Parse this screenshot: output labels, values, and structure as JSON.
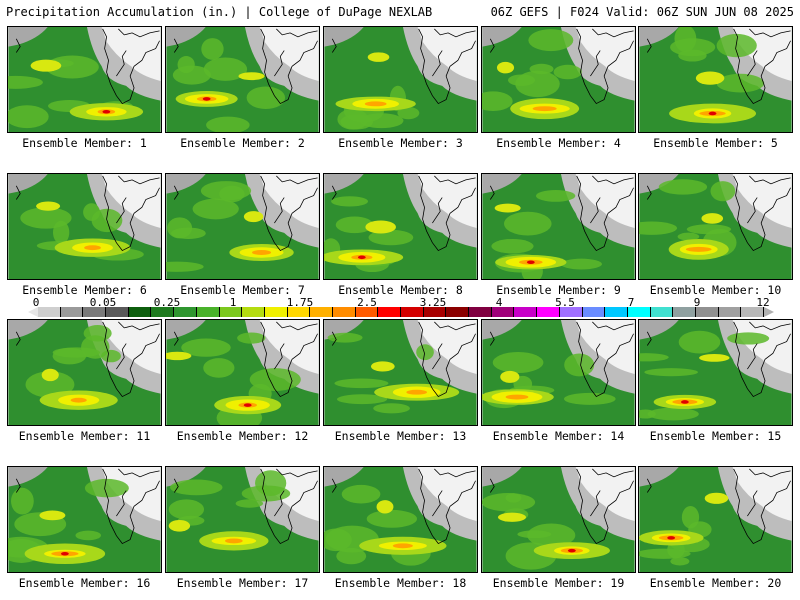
{
  "header": {
    "left_title": "Precipitation Accumulation (in.) | College of DuPage NEXLAB",
    "right_title": "06Z GEFS | F024 Valid: 06Z SUN JUN 08 2025"
  },
  "panels": [
    {
      "label": "Ensemble Member: 1"
    },
    {
      "label": "Ensemble Member: 2"
    },
    {
      "label": "Ensemble Member: 3"
    },
    {
      "label": "Ensemble Member: 4"
    },
    {
      "label": "Ensemble Member: 5"
    },
    {
      "label": "Ensemble Member: 6"
    },
    {
      "label": "Ensemble Member: 7"
    },
    {
      "label": "Ensemble Member: 8"
    },
    {
      "label": "Ensemble Member: 9"
    },
    {
      "label": "Ensemble Member: 10"
    },
    {
      "label": "Ensemble Member: 11"
    },
    {
      "label": "Ensemble Member: 12"
    },
    {
      "label": "Ensemble Member: 13"
    },
    {
      "label": "Ensemble Member: 14"
    },
    {
      "label": "Ensemble Member: 15"
    },
    {
      "label": "Ensemble Member: 16"
    },
    {
      "label": "Ensemble Member: 17"
    },
    {
      "label": "Ensemble Member: 18"
    },
    {
      "label": "Ensemble Member: 19"
    },
    {
      "label": "Ensemble Member: 20"
    }
  ],
  "colorbar": {
    "tick_labels": [
      "0",
      "0.05",
      "0.25",
      "1",
      "1.75",
      "2.5",
      "3.25",
      "4",
      "5.5",
      "7",
      "9",
      "12"
    ],
    "colors": [
      "#cfcfcf",
      "#9a9a9a",
      "#7a7a7a",
      "#5a5a5a",
      "#0d5e0d",
      "#1e7a1e",
      "#2f962f",
      "#49b22a",
      "#7cc81e",
      "#b4dc10",
      "#f0f000",
      "#ffd700",
      "#ffb000",
      "#ff8c00",
      "#ff5a00",
      "#ff0000",
      "#d40000",
      "#a80000",
      "#8b0000",
      "#800040",
      "#a0007a",
      "#c800c8",
      "#ff00ff",
      "#a070ff",
      "#6a8cff",
      "#00c8ff",
      "#00ffff",
      "#40e0d0",
      "#8fa0a0",
      "#909090",
      "#a0a0a0",
      "#b8b8b8"
    ]
  }
}
